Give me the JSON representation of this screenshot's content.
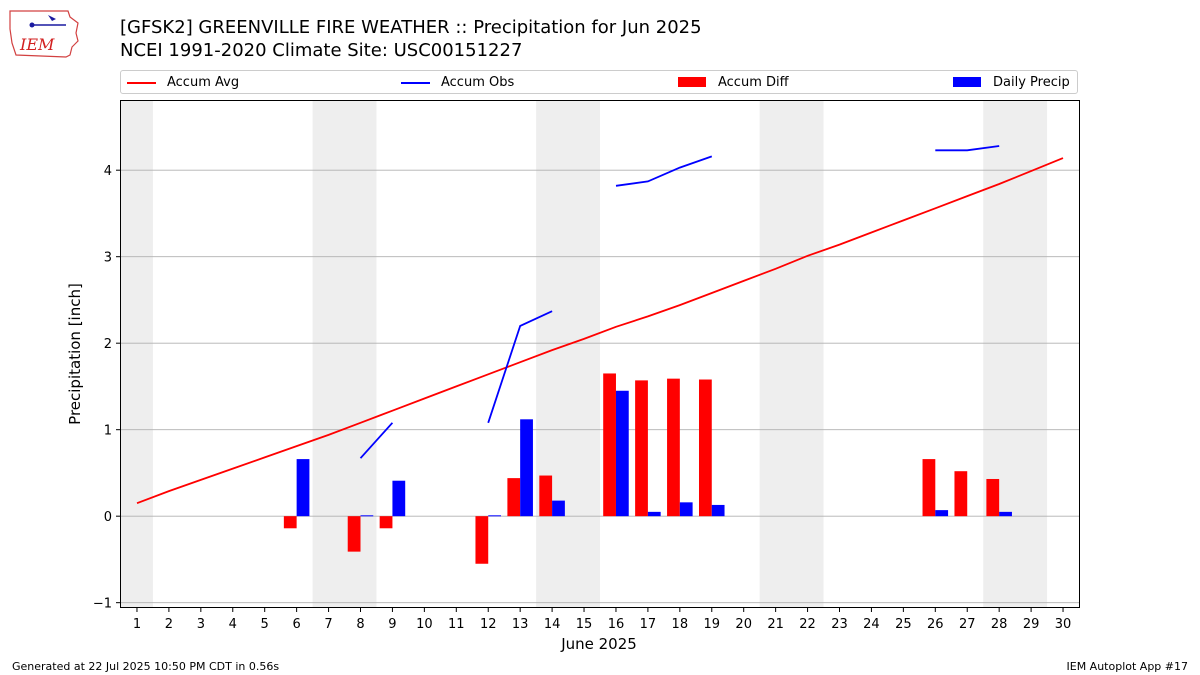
{
  "header": {
    "title_line1": "[GFSK2] GREENVILLE FIRE WEATHER :: Precipitation for Jun 2025",
    "title_line2": "NCEI 1991-2020 Climate Site: USC00151227",
    "logo_text": "IEM"
  },
  "footer": {
    "generated": "Generated at 22 Jul 2025 10:50 PM CDT in 0.56s",
    "app": "IEM Autoplot App #17"
  },
  "colors": {
    "accum_avg": "#ff0000",
    "accum_obs": "#0000ff",
    "accum_diff": "#ff0000",
    "daily_precip": "#0000ff",
    "weekend_band": "#eeeeee",
    "grid": "#b0b0b0"
  },
  "legend": [
    {
      "label": "Accum Avg",
      "kind": "line",
      "color": "#ff0000"
    },
    {
      "label": "Accum Obs",
      "kind": "line",
      "color": "#0000ff"
    },
    {
      "label": "Accum Diff",
      "kind": "box",
      "color": "#ff0000"
    },
    {
      "label": "Daily Precip",
      "kind": "box",
      "color": "#0000ff"
    }
  ],
  "chart_data": {
    "type": "bar",
    "title": "[GFSK2] GREENVILLE FIRE WEATHER :: Precipitation for Jun 2025",
    "subtitle": "NCEI 1991-2020 Climate Site: USC00151227",
    "xlabel": "June 2025",
    "ylabel": "Precipitation [inch]",
    "x": [
      1,
      2,
      3,
      4,
      5,
      6,
      7,
      8,
      9,
      10,
      11,
      12,
      13,
      14,
      15,
      16,
      17,
      18,
      19,
      20,
      21,
      22,
      23,
      24,
      25,
      26,
      27,
      28,
      29,
      30
    ],
    "xlim": [
      0.5,
      30.5
    ],
    "ylim": [
      -1.05,
      4.8
    ],
    "yticks": [
      -1,
      0,
      1,
      2,
      3,
      4
    ],
    "grid": "y",
    "legend_position": "top",
    "weekend_bands": [
      [
        1,
        1
      ],
      [
        7,
        8
      ],
      [
        14,
        15
      ],
      [
        21,
        22
      ],
      [
        28,
        29
      ]
    ],
    "series": [
      {
        "name": "Accum Avg",
        "kind": "line",
        "values": [
          0.15,
          0.29,
          0.42,
          0.55,
          0.68,
          0.81,
          0.94,
          1.08,
          1.22,
          1.36,
          1.5,
          1.64,
          1.78,
          1.92,
          2.05,
          2.19,
          2.31,
          2.44,
          2.58,
          2.72,
          2.86,
          3.01,
          3.14,
          3.28,
          3.42,
          3.56,
          3.7,
          3.84,
          3.99,
          4.14
        ]
      },
      {
        "name": "Accum Obs",
        "kind": "line",
        "values": [
          null,
          null,
          null,
          null,
          null,
          null,
          null,
          0.67,
          1.08,
          null,
          null,
          1.08,
          2.2,
          2.37,
          null,
          3.82,
          3.87,
          4.03,
          4.16,
          null,
          null,
          null,
          null,
          null,
          null,
          4.23,
          4.23,
          4.28,
          null,
          null
        ]
      },
      {
        "name": "Accum Diff",
        "kind": "bar",
        "values": [
          0,
          0,
          0,
          0,
          0,
          -0.14,
          0,
          -0.41,
          -0.14,
          0,
          0,
          -0.55,
          0.44,
          0.47,
          0,
          1.65,
          1.57,
          1.59,
          1.58,
          0,
          0,
          0,
          0,
          0,
          0,
          0.66,
          0.52,
          0.43,
          0,
          0
        ]
      },
      {
        "name": "Daily Precip",
        "kind": "bar",
        "values": [
          0,
          0,
          0,
          0,
          0,
          0.66,
          0,
          0.01,
          0.41,
          0,
          0,
          0.01,
          1.12,
          0.18,
          0,
          1.45,
          0.05,
          0.16,
          0.13,
          0,
          0,
          0,
          0,
          0,
          0,
          0.07,
          0,
          0.05,
          0,
          0
        ]
      }
    ]
  }
}
